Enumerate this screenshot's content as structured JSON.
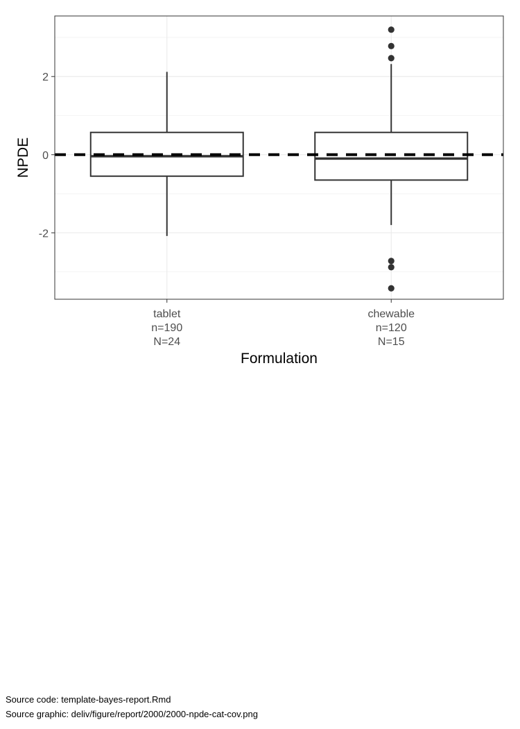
{
  "chart_data": {
    "type": "box",
    "title": "",
    "xlabel": "Formulation",
    "ylabel": "NPDE",
    "ylim": [
      -3.7,
      3.55
    ],
    "yticks": [
      -2,
      0,
      2
    ],
    "ytick_labels": [
      "-2",
      "0",
      "2"
    ],
    "grid": true,
    "reference_line": {
      "y": 0,
      "style": "dashed",
      "color": "#000000"
    },
    "categories": [
      {
        "label": "tablet",
        "n_label": "n=190",
        "N_label": "N=24",
        "whisker_low": -2.08,
        "q1": -0.55,
        "median": -0.04,
        "q3": 0.57,
        "whisker_high": 2.12,
        "outliers": []
      },
      {
        "label": "chewable",
        "n_label": "n=120",
        "N_label": "N=15",
        "whisker_low": -1.8,
        "q1": -0.65,
        "median": -0.1,
        "q3": 0.57,
        "whisker_high": 2.32,
        "outliers": [
          3.2,
          2.78,
          2.47,
          -2.72,
          -2.88,
          -3.42
        ]
      }
    ]
  },
  "footer": {
    "source_code": "Source code: template-bayes-report.Rmd",
    "source_graphic": "Source graphic: deliv/figure/report/2000/2000-npde-cat-cov.png"
  }
}
